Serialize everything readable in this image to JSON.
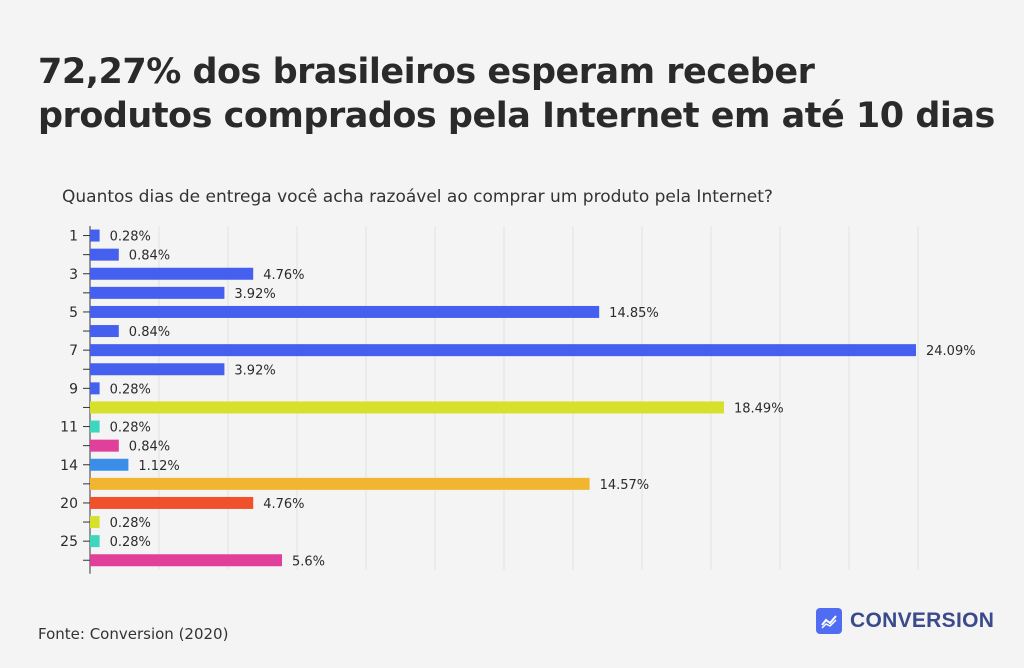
{
  "title": "72,27% dos brasileiros esperam receber produtos comprados pela Internet em até 10 dias",
  "source": "Fonte: Conversion (2020)",
  "brand": {
    "name": "CONVERSION",
    "icon": "trend-line-icon",
    "color": "#4f6cf2"
  },
  "chart_data": {
    "type": "bar",
    "orientation": "horizontal",
    "subtitle": "Quantos dias de entrega você acha razoável ao comprar um produto pela Internet?",
    "categories": [
      "1",
      "",
      "3",
      "",
      "5",
      "",
      "7",
      "",
      "9",
      "",
      "11",
      "",
      "14",
      "",
      "20",
      "",
      "25",
      ""
    ],
    "values": [
      0.28,
      0.84,
      4.76,
      3.92,
      14.85,
      0.84,
      24.09,
      3.92,
      0.28,
      18.49,
      0.28,
      0.84,
      1.12,
      14.57,
      4.76,
      0.28,
      0.28,
      5.6
    ],
    "labels": [
      "0.28%",
      "0.84%",
      "4.76%",
      "3.92%",
      "14.85%",
      "0.84%",
      "24.09%",
      "3.92%",
      "0.28%",
      "18.49%",
      "0.28%",
      "0.84%",
      "1.12%",
      "14.57%",
      "4.76%",
      "0.28%",
      "0.28%",
      "5.6%"
    ],
    "colors": [
      "#4560ee",
      "#4560ee",
      "#4560ee",
      "#4560ee",
      "#4560ee",
      "#4560ee",
      "#4560ee",
      "#4560ee",
      "#4560ee",
      "#d7e02a",
      "#3fd6c0",
      "#e0409a",
      "#3b8ee8",
      "#f2b52f",
      "#f0512a",
      "#d7e02a",
      "#3fd6c0",
      "#e0409a"
    ],
    "xlim": [
      0,
      24.09
    ],
    "grid": true
  }
}
